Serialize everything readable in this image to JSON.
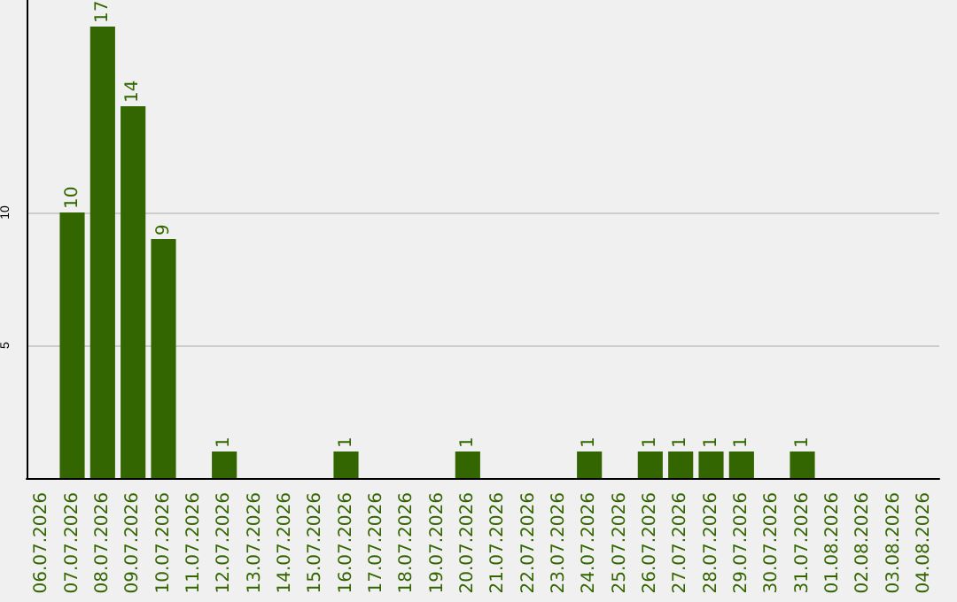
{
  "chart_data": {
    "type": "bar",
    "categories": [
      "06.07.2026",
      "07.07.2026",
      "08.07.2026",
      "09.07.2026",
      "10.07.2026",
      "11.07.2026",
      "12.07.2026",
      "13.07.2026",
      "14.07.2026",
      "15.07.2026",
      "16.07.2026",
      "17.07.2026",
      "18.07.2026",
      "19.07.2026",
      "20.07.2026",
      "21.07.2026",
      "22.07.2026",
      "23.07.2026",
      "24.07.2026",
      "25.07.2026",
      "26.07.2026",
      "27.07.2026",
      "28.07.2026",
      "29.07.2026",
      "30.07.2026",
      "31.07.2026",
      "01.08.2026",
      "02.08.2026",
      "03.08.2026",
      "04.08.2026"
    ],
    "values": [
      0,
      10,
      17,
      14,
      9,
      0,
      1,
      0,
      0,
      0,
      1,
      0,
      0,
      0,
      1,
      0,
      0,
      0,
      1,
      0,
      1,
      1,
      1,
      1,
      0,
      1,
      0,
      0,
      0,
      0
    ],
    "value_labels": [
      null,
      "10",
      "17",
      "14",
      "9",
      null,
      "1",
      null,
      null,
      null,
      "1",
      null,
      null,
      null,
      "1",
      null,
      null,
      null,
      "1",
      null,
      "1",
      "1",
      "1",
      "1",
      null,
      "1",
      null,
      null,
      null,
      null
    ],
    "color": "#336600",
    "ylim": [
      0,
      18
    ],
    "yticks": [
      5,
      10
    ],
    "grid": "y"
  }
}
